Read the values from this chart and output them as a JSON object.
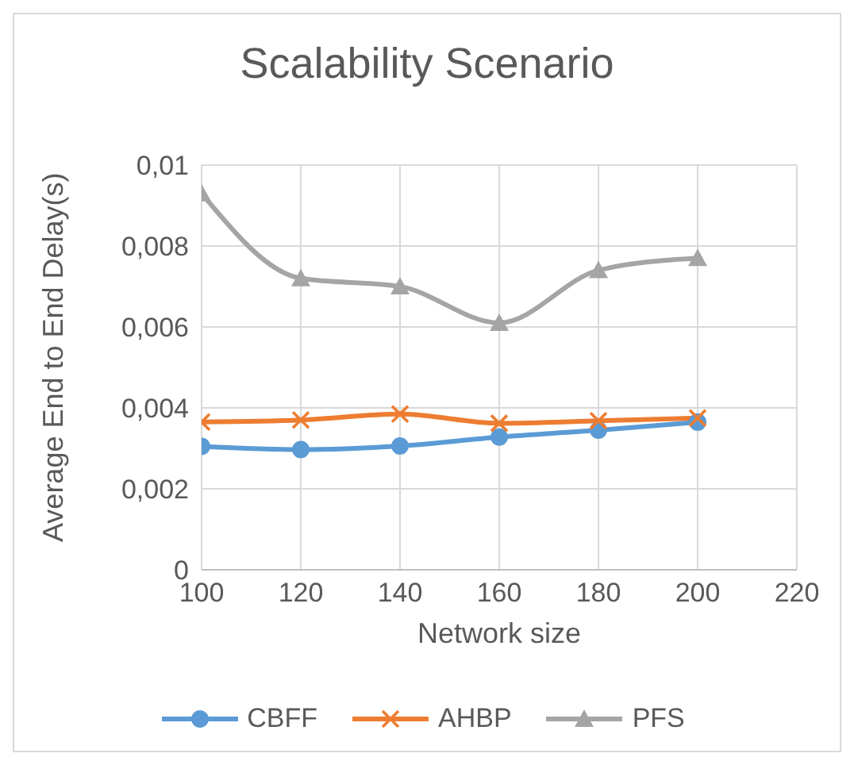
{
  "chart_data": {
    "type": "line",
    "title": "Scalability Scenario",
    "xlabel": "Network size",
    "ylabel": "Average End to End Delay(s)",
    "x": [
      100,
      120,
      140,
      160,
      180,
      200
    ],
    "xlim": [
      100,
      220
    ],
    "xticks": [
      100,
      120,
      140,
      160,
      180,
      200,
      220
    ],
    "ylim": [
      0,
      0.01
    ],
    "yticks": [
      0,
      {
        "value": 0.002,
        "label": "0,002"
      },
      {
        "value": 0.004,
        "label": "0,004"
      },
      {
        "value": 0.006,
        "label": "0,006"
      },
      {
        "value": 0.008,
        "label": "0,008"
      },
      {
        "value": 0.01,
        "label": "0,01"
      }
    ],
    "grid": true,
    "legend": "bottom",
    "line_style": "solid",
    "series": [
      {
        "name": "CBFF",
        "color": "#5b9bd5",
        "marker": "circle",
        "values": [
          0.00305,
          0.00297,
          0.00306,
          0.00328,
          0.00345,
          0.00365
        ]
      },
      {
        "name": "AHBP",
        "color": "#ed7d31",
        "marker": "cross",
        "values": [
          0.00365,
          0.0037,
          0.00385,
          0.00362,
          0.00368,
          0.00375
        ]
      },
      {
        "name": "PFS",
        "color": "#a5a5a5",
        "marker": "triangle",
        "values": [
          0.0093,
          0.0072,
          0.007,
          0.0061,
          0.0074,
          0.0077
        ]
      }
    ]
  }
}
